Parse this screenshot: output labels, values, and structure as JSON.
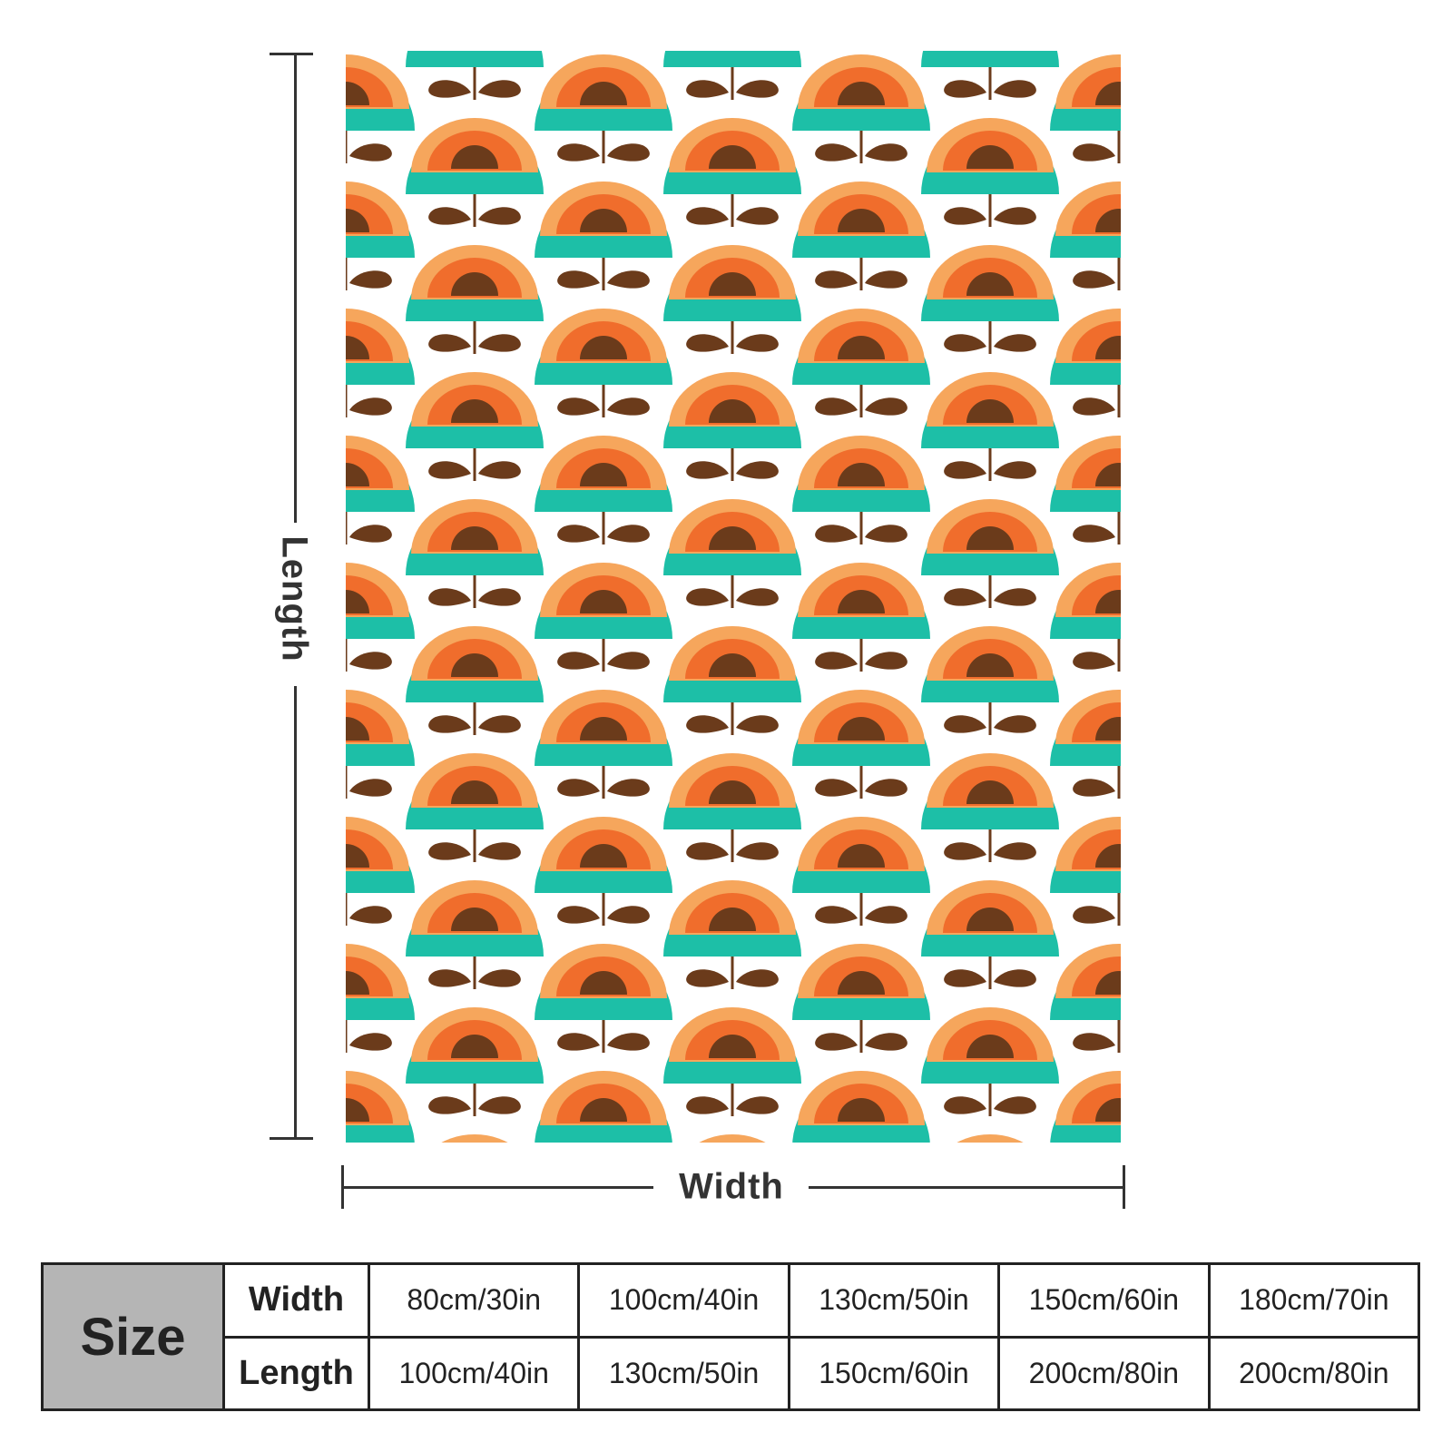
{
  "diagram": {
    "length_label": "Length",
    "width_label": "Width"
  },
  "pattern": {
    "colors": {
      "teal": "#1dbfa7",
      "light_orange": "#f6a65c",
      "orange": "#f06d2c",
      "brown": "#6b3b1b",
      "background": "#ffffff"
    }
  },
  "size_table": {
    "header": "Size",
    "rows": [
      {
        "label": "Width",
        "values": [
          "80cm/30in",
          "100cm/40in",
          "130cm/50in",
          "150cm/60in",
          "180cm/70in"
        ]
      },
      {
        "label": "Length",
        "values": [
          "100cm/40in",
          "130cm/50in",
          "150cm/60in",
          "200cm/80in",
          "200cm/80in"
        ]
      }
    ]
  }
}
